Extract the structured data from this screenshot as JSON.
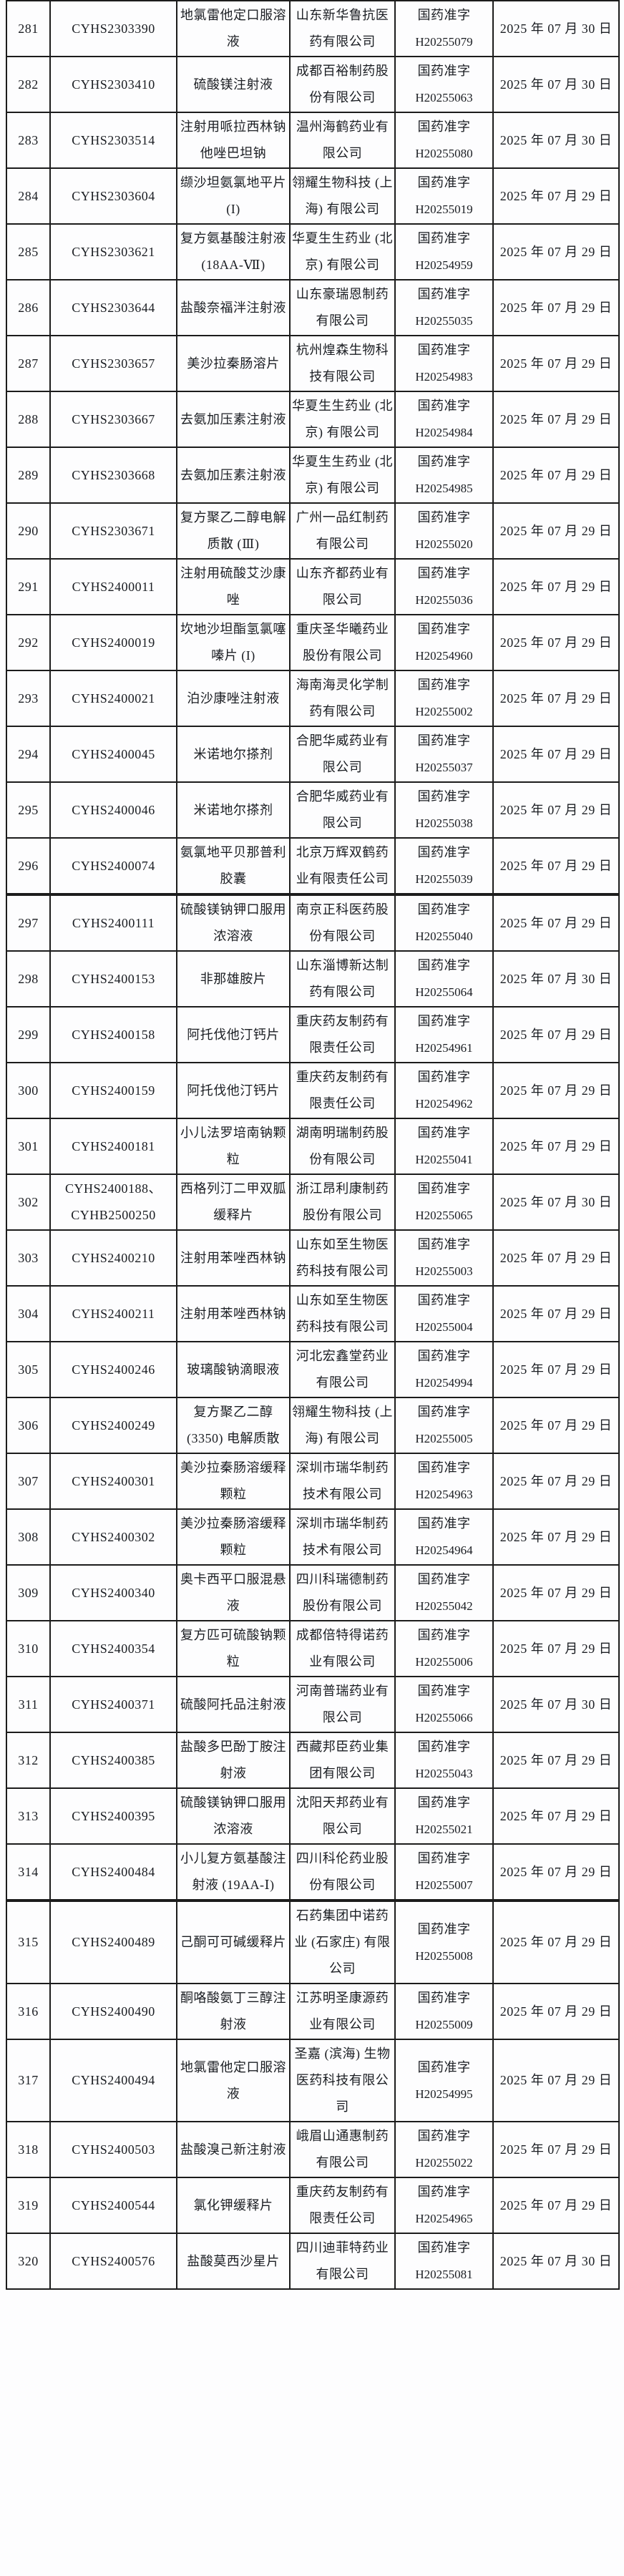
{
  "page": {
    "background_color": "#fdfdfe",
    "text_color": "#1a1d22",
    "border_color": "#1c1c1c"
  },
  "table": {
    "license_line_breaks": true,
    "thick_border_after_rows": [
      "296",
      "314"
    ],
    "rows": [
      {
        "no": "281",
        "reg": "CYHS2303390",
        "drug": "地氯雷他定口服溶液",
        "manufacturer": "山东新华鲁抗医药有限公司",
        "license_prefix": "国药准字",
        "license_no": "H20255079",
        "date": "2025 年 07 月 30 日"
      },
      {
        "no": "282",
        "reg": "CYHS2303410",
        "drug": "硫酸镁注射液",
        "manufacturer": "成都百裕制药股份有限公司",
        "license_prefix": "国药准字",
        "license_no": "H20255063",
        "date": "2025 年 07 月 30 日"
      },
      {
        "no": "283",
        "reg": "CYHS2303514",
        "drug": "注射用哌拉西林钠他唑巴坦钠",
        "manufacturer": "温州海鹤药业有限公司",
        "license_prefix": "国药准字",
        "license_no": "H20255080",
        "date": "2025 年 07 月 30 日"
      },
      {
        "no": "284",
        "reg": "CYHS2303604",
        "drug": "缬沙坦氨氯地平片 (I)",
        "manufacturer": "翎耀生物科技 (上海) 有限公司",
        "license_prefix": "国药准字",
        "license_no": "H20255019",
        "date": "2025 年 07 月 29 日"
      },
      {
        "no": "285",
        "reg": "CYHS2303621",
        "drug": "复方氨基酸注射液 (18AA-Ⅶ)",
        "manufacturer": "华夏生生药业 (北京) 有限公司",
        "license_prefix": "国药准字",
        "license_no": "H20254959",
        "date": "2025 年 07 月 29 日"
      },
      {
        "no": "286",
        "reg": "CYHS2303644",
        "drug": "盐酸奈福泮注射液",
        "manufacturer": "山东豪瑞恩制药有限公司",
        "license_prefix": "国药准字",
        "license_no": "H20255035",
        "date": "2025 年 07 月 29 日"
      },
      {
        "no": "287",
        "reg": "CYHS2303657",
        "drug": "美沙拉秦肠溶片",
        "manufacturer": "杭州煌森生物科技有限公司",
        "license_prefix": "国药准字",
        "license_no": "H20254983",
        "date": "2025 年 07 月 29 日"
      },
      {
        "no": "288",
        "reg": "CYHS2303667",
        "drug": "去氨加压素注射液",
        "manufacturer": "华夏生生药业 (北京) 有限公司",
        "license_prefix": "国药准字",
        "license_no": "H20254984",
        "date": "2025 年 07 月 29 日"
      },
      {
        "no": "289",
        "reg": "CYHS2303668",
        "drug": "去氨加压素注射液",
        "manufacturer": "华夏生生药业 (北京) 有限公司",
        "license_prefix": "国药准字",
        "license_no": "H20254985",
        "date": "2025 年 07 月 29 日"
      },
      {
        "no": "290",
        "reg": "CYHS2303671",
        "drug": "复方聚乙二醇电解质散 (Ⅲ)",
        "manufacturer": "广州一品红制药有限公司",
        "license_prefix": "国药准字",
        "license_no": "H20255020",
        "date": "2025 年 07 月 29 日"
      },
      {
        "no": "291",
        "reg": "CYHS2400011",
        "drug": "注射用硫酸艾沙康唑",
        "manufacturer": "山东齐都药业有限公司",
        "license_prefix": "国药准字",
        "license_no": "H20255036",
        "date": "2025 年 07 月 29 日"
      },
      {
        "no": "292",
        "reg": "CYHS2400019",
        "drug": "坎地沙坦酯氢氯噻嗪片 (I)",
        "manufacturer": "重庆圣华曦药业股份有限公司",
        "license_prefix": "国药准字",
        "license_no": "H20254960",
        "date": "2025 年 07 月 29 日"
      },
      {
        "no": "293",
        "reg": "CYHS2400021",
        "drug": "泊沙康唑注射液",
        "manufacturer": "海南海灵化学制药有限公司",
        "license_prefix": "国药准字",
        "license_no": "H20255002",
        "date": "2025 年 07 月 29 日"
      },
      {
        "no": "294",
        "reg": "CYHS2400045",
        "drug": "米诺地尔搽剂",
        "manufacturer": "合肥华威药业有限公司",
        "license_prefix": "国药准字",
        "license_no": "H20255037",
        "date": "2025 年 07 月 29 日"
      },
      {
        "no": "295",
        "reg": "CYHS2400046",
        "drug": "米诺地尔搽剂",
        "manufacturer": "合肥华威药业有限公司",
        "license_prefix": "国药准字",
        "license_no": "H20255038",
        "date": "2025 年 07 月 29 日"
      },
      {
        "no": "296",
        "reg": "CYHS2400074",
        "drug": "氨氯地平贝那普利胶囊",
        "manufacturer": "北京万辉双鹤药业有限责任公司",
        "license_prefix": "国药准字",
        "license_no": "H20255039",
        "date": "2025 年 07 月 29 日"
      },
      {
        "no": "297",
        "reg": "CYHS2400111",
        "drug": "硫酸镁钠钾口服用浓溶液",
        "manufacturer": "南京正科医药股份有限公司",
        "license_prefix": "国药准字",
        "license_no": "H20255040",
        "date": "2025 年 07 月 29 日"
      },
      {
        "no": "298",
        "reg": "CYHS2400153",
        "drug": "非那雄胺片",
        "manufacturer": "山东淄博新达制药有限公司",
        "license_prefix": "国药准字",
        "license_no": "H20255064",
        "date": "2025 年 07 月 30 日"
      },
      {
        "no": "299",
        "reg": "CYHS2400158",
        "drug": "阿托伐他汀钙片",
        "manufacturer": "重庆药友制药有限责任公司",
        "license_prefix": "国药准字",
        "license_no": "H20254961",
        "date": "2025 年 07 月 29 日"
      },
      {
        "no": "300",
        "reg": "CYHS2400159",
        "drug": "阿托伐他汀钙片",
        "manufacturer": "重庆药友制药有限责任公司",
        "license_prefix": "国药准字",
        "license_no": "H20254962",
        "date": "2025 年 07 月 29 日"
      },
      {
        "no": "301",
        "reg": "CYHS2400181",
        "drug": "小儿法罗培南钠颗粒",
        "manufacturer": "湖南明瑞制药股份有限公司",
        "license_prefix": "国药准字",
        "license_no": "H20255041",
        "date": "2025 年 07 月 29 日"
      },
      {
        "no": "302",
        "reg": "CYHS2400188、CYHB2500250",
        "drug": "西格列汀二甲双胍缓释片",
        "manufacturer": "浙江昂利康制药股份有限公司",
        "license_prefix": "国药准字",
        "license_no": "H20255065",
        "date": "2025 年 07 月 30 日"
      },
      {
        "no": "303",
        "reg": "CYHS2400210",
        "drug": "注射用苯唑西林钠",
        "manufacturer": "山东如至生物医药科技有限公司",
        "license_prefix": "国药准字",
        "license_no": "H20255003",
        "date": "2025 年 07 月 29 日"
      },
      {
        "no": "304",
        "reg": "CYHS2400211",
        "drug": "注射用苯唑西林钠",
        "manufacturer": "山东如至生物医药科技有限公司",
        "license_prefix": "国药准字",
        "license_no": "H20255004",
        "date": "2025 年 07 月 29 日"
      },
      {
        "no": "305",
        "reg": "CYHS2400246",
        "drug": "玻璃酸钠滴眼液",
        "manufacturer": "河北宏鑫堂药业有限公司",
        "license_prefix": "国药准字",
        "license_no": "H20254994",
        "date": "2025 年 07 月 29 日"
      },
      {
        "no": "306",
        "reg": "CYHS2400249",
        "drug": "复方聚乙二醇 (3350) 电解质散",
        "manufacturer": "翎耀生物科技 (上海) 有限公司",
        "license_prefix": "国药准字",
        "license_no": "H20255005",
        "date": "2025 年 07 月 29 日"
      },
      {
        "no": "307",
        "reg": "CYHS2400301",
        "drug": "美沙拉秦肠溶缓释颗粒",
        "manufacturer": "深圳市瑞华制药技术有限公司",
        "license_prefix": "国药准字",
        "license_no": "H20254963",
        "date": "2025 年 07 月 29 日"
      },
      {
        "no": "308",
        "reg": "CYHS2400302",
        "drug": "美沙拉秦肠溶缓释颗粒",
        "manufacturer": "深圳市瑞华制药技术有限公司",
        "license_prefix": "国药准字",
        "license_no": "H20254964",
        "date": "2025 年 07 月 29 日"
      },
      {
        "no": "309",
        "reg": "CYHS2400340",
        "drug": "奥卡西平口服混悬液",
        "manufacturer": "四川科瑞德制药股份有限公司",
        "license_prefix": "国药准字",
        "license_no": "H20255042",
        "date": "2025 年 07 月 29 日"
      },
      {
        "no": "310",
        "reg": "CYHS2400354",
        "drug": "复方匹可硫酸钠颗粒",
        "manufacturer": "成都倍特得诺药业有限公司",
        "license_prefix": "国药准字",
        "license_no": "H20255006",
        "date": "2025 年 07 月 29 日"
      },
      {
        "no": "311",
        "reg": "CYHS2400371",
        "drug": "硫酸阿托品注射液",
        "manufacturer": "河南普瑞药业有限公司",
        "license_prefix": "国药准字",
        "license_no": "H20255066",
        "date": "2025 年 07 月 30 日"
      },
      {
        "no": "312",
        "reg": "CYHS2400385",
        "drug": "盐酸多巴酚丁胺注射液",
        "manufacturer": "西藏邦臣药业集团有限公司",
        "license_prefix": "国药准字",
        "license_no": "H20255043",
        "date": "2025 年 07 月 29 日"
      },
      {
        "no": "313",
        "reg": "CYHS2400395",
        "drug": "硫酸镁钠钾口服用浓溶液",
        "manufacturer": "沈阳天邦药业有限公司",
        "license_prefix": "国药准字",
        "license_no": "H20255021",
        "date": "2025 年 07 月 29 日"
      },
      {
        "no": "314",
        "reg": "CYHS2400484",
        "drug": "小儿复方氨基酸注射液 (19AA-Ⅰ)",
        "manufacturer": "四川科伦药业股份有限公司",
        "license_prefix": "国药准字",
        "license_no": "H20255007",
        "date": "2025 年 07 月 29 日"
      },
      {
        "no": "315",
        "reg": "CYHS2400489",
        "drug": "己酮可可碱缓释片",
        "manufacturer": "石药集团中诺药业 (石家庄) 有限公司",
        "license_prefix": "国药准字",
        "license_no": "H20255008",
        "date": "2025 年 07 月 29 日"
      },
      {
        "no": "316",
        "reg": "CYHS2400490",
        "drug": "酮咯酸氨丁三醇注射液",
        "manufacturer": "江苏明圣康源药业有限公司",
        "license_prefix": "国药准字",
        "license_no": "H20255009",
        "date": "2025 年 07 月 29 日"
      },
      {
        "no": "317",
        "reg": "CYHS2400494",
        "drug": "地氯雷他定口服溶液",
        "manufacturer": "圣嘉 (滨海) 生物医药科技有限公司",
        "license_prefix": "国药准字",
        "license_no": "H20254995",
        "date": "2025 年 07 月 29 日"
      },
      {
        "no": "318",
        "reg": "CYHS2400503",
        "drug": "盐酸溴己新注射液",
        "manufacturer": "峨眉山通惠制药有限公司",
        "license_prefix": "国药准字",
        "license_no": "H20255022",
        "date": "2025 年 07 月 29 日"
      },
      {
        "no": "319",
        "reg": "CYHS2400544",
        "drug": "氯化钾缓释片",
        "manufacturer": "重庆药友制药有限责任公司",
        "license_prefix": "国药准字",
        "license_no": "H20254965",
        "date": "2025 年 07 月 29 日"
      },
      {
        "no": "320",
        "reg": "CYHS2400576",
        "drug": "盐酸莫西沙星片",
        "manufacturer": "四川迪菲特药业有限公司",
        "license_prefix": "国药准字",
        "license_no": "H20255081",
        "date": "2025 年 07 月 30 日"
      }
    ]
  }
}
